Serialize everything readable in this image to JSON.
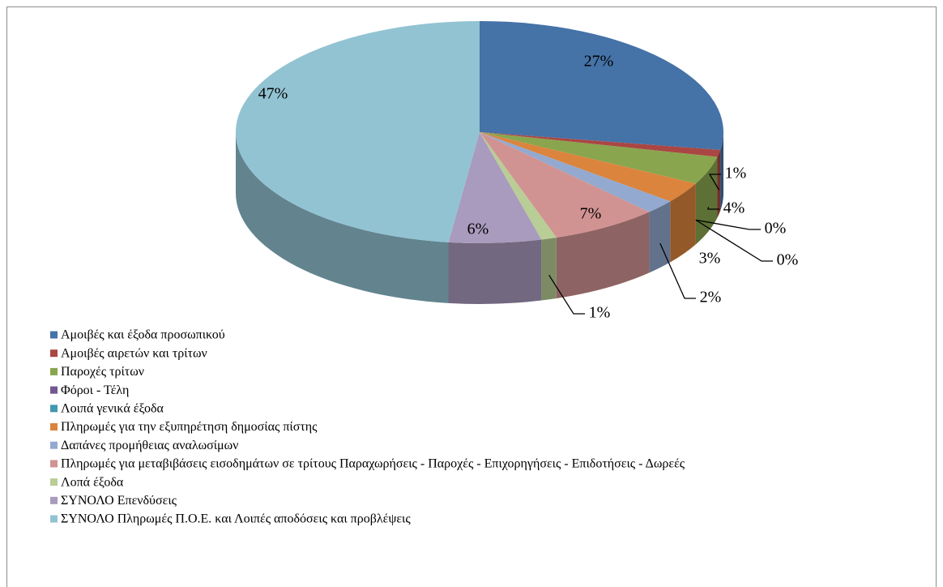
{
  "chart_data": {
    "type": "pie3d",
    "categories": [
      "Αμοιβές και έξοδα προσωπικού",
      "Αμοιβές αιρετών και τρίτων",
      "Παροχές τρίτων",
      "Φόροι - Τέλη",
      "Λοιπά γενικά έξοδα",
      "Πληρωμές για την εξυπηρέτηση δημοσίας πίστης",
      "Δαπάνες προμήθειας αναλωσίμων",
      "Πληρωμές για μεταβιβάσεις εισοδημάτων σε τρίτους Παραχωρήσεις - Παροχές - Επιχορηγήσεις - Επιδοτήσεις - Δωρεές",
      "Λοπά έξοδα",
      "ΣΥΝΟΛΟ Επενδύσεις",
      "ΣΥΝΟΛΟ Πληρωμές Π.Ο.Ε. και Λοιπές αποδόσεις και προβλέψεις"
    ],
    "values": [
      27,
      1,
      4,
      0,
      0,
      3,
      2,
      7,
      1,
      6,
      47
    ],
    "value_labels": [
      "27%",
      "1%",
      "4%",
      "0%",
      "0%",
      "3%",
      "2%",
      "7%",
      "1%",
      "6%",
      "47%"
    ],
    "colors": [
      "#4572a7",
      "#aa4643",
      "#89a54e",
      "#71588f",
      "#4198af",
      "#db843d",
      "#93a9cf",
      "#d19392",
      "#b9cd96",
      "#a99bbd",
      "#92c3d3"
    ],
    "legend": "bottom-left"
  }
}
